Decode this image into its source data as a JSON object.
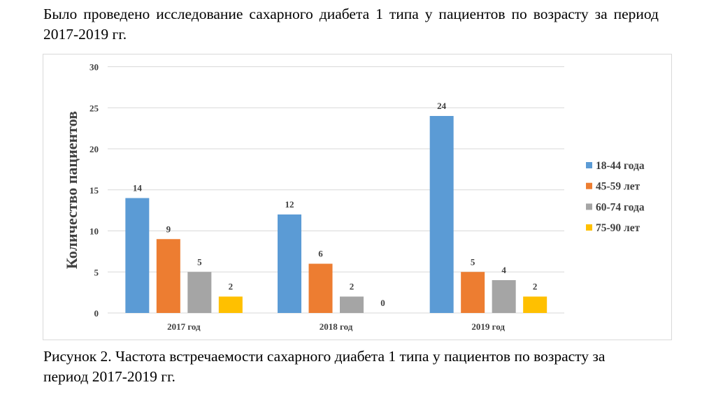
{
  "heading": "Было проведено исследование сахарного диабета 1 типа у пациентов по возрасту за период 2017-2019 гг.",
  "caption": "Рисунок 2. Частота встречаемости сахарного диабета 1 типа у пациентов по возрасту за период 2017-2019 гг.",
  "chart_data": {
    "type": "bar",
    "title": "",
    "xlabel": "",
    "ylabel": "Количество пациентов",
    "ylim": [
      0,
      30
    ],
    "yticks": [
      0,
      5,
      10,
      15,
      20,
      25,
      30
    ],
    "grid": true,
    "legend_position": "right",
    "categories": [
      "2017 год",
      "2018 год",
      "2019 год"
    ],
    "series": [
      {
        "name": "18-44 года",
        "color": "#5b9bd5",
        "values": [
          14,
          12,
          24
        ]
      },
      {
        "name": "45-59 лет",
        "color": "#ed7d31",
        "values": [
          9,
          6,
          5
        ]
      },
      {
        "name": "60-74 года",
        "color": "#a5a5a5",
        "values": [
          5,
          2,
          4
        ]
      },
      {
        "name": "75-90 лет",
        "color": "#ffc000",
        "values": [
          2,
          0,
          2
        ]
      }
    ]
  }
}
